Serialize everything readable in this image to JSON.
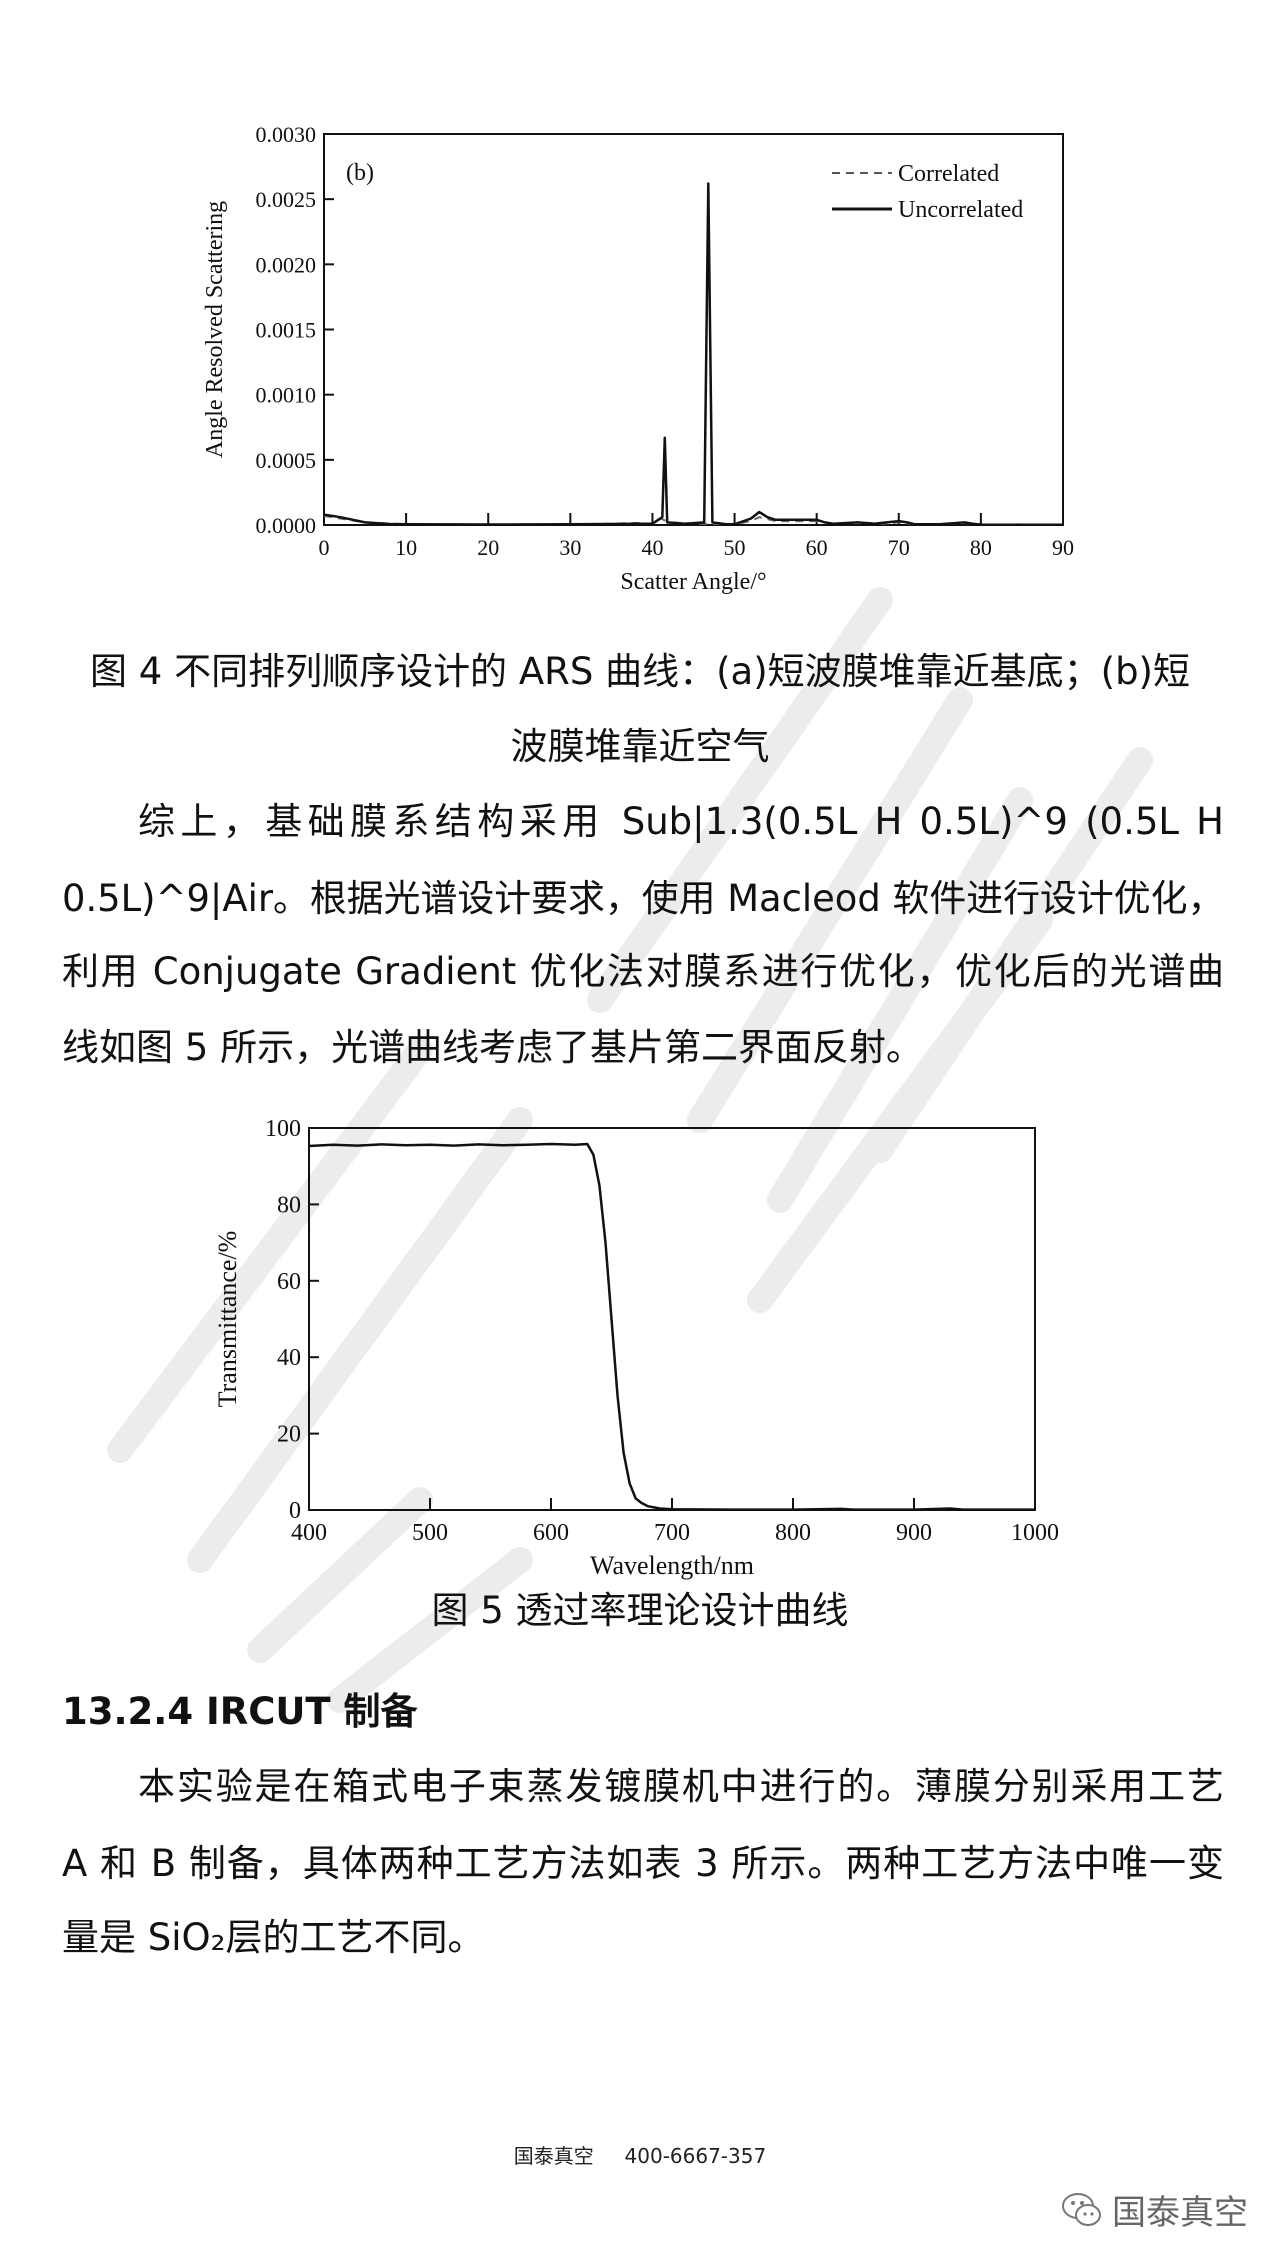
{
  "watermark": "国泰真空",
  "figure4": {
    "caption_line1": "图 4 不同排列顺序设计的 ARS 曲线：(a)短波膜堆靠近基底；(b)短",
    "caption_line2": "波膜堆靠近空气"
  },
  "paragraph1": {
    "lines": [
      "综上，基础膜系结构采用 Sub|1.3(0.5L  H  0.5L)^9  (0.5L  H",
      "0.5L)^9|Air。根据光谱设计要求，使用 Macleod 软件进行设计优化，",
      "利用 Conjugate  Gradient 优化法对膜系进行优化，优化后的光谱曲",
      "线如图 5 所示，光谱曲线考虑了基片第二界面反射。"
    ]
  },
  "figure5": {
    "caption": "图 5  透过率理论设计曲线"
  },
  "section": {
    "heading": "13.2.4 IRCUT 制备",
    "lines": [
      "本实验是在箱式电子束蒸发镀膜机中进行的。薄膜分别采用工艺",
      "A 和 B 制备，具体两种工艺方法如表 3 所示。两种工艺方法中唯一变",
      "量是 SiO₂层的工艺不同。"
    ]
  },
  "footer": {
    "company": "国泰真空",
    "phone": "400-6667-357",
    "wechat_label": "国泰真空",
    "wechat_icon": "wechat-icon"
  },
  "chart_data": [
    {
      "type": "line",
      "panel_label": "(b)",
      "xlabel": "Scatter Angle/°",
      "ylabel": "Angle Resolved Scattering",
      "xlim": [
        0,
        90
      ],
      "ylim": [
        0,
        0.003
      ],
      "xticks": [
        "0",
        "10",
        "20",
        "30",
        "40",
        "50",
        "60",
        "70",
        "80",
        "90"
      ],
      "yticks": [
        "0.0000",
        "0.0005",
        "0.0010",
        "0.0015",
        "0.0020",
        "0.0025",
        "0.0030"
      ],
      "grid": false,
      "legend": "top-right",
      "series": [
        {
          "name": "Correlated",
          "style": "dashed",
          "x": [
            0,
            2,
            5,
            10,
            20,
            30,
            35,
            38,
            40,
            41,
            42,
            45,
            50,
            52,
            53,
            55,
            60,
            62,
            65,
            68,
            70,
            72,
            75,
            78,
            80,
            85,
            90
          ],
          "y": [
            7e-05,
            5e-05,
            2e-05,
            5e-06,
            4e-06,
            5e-06,
            1e-05,
            1.5e-05,
            1e-05,
            5e-05,
            2e-05,
            1e-05,
            5e-06,
            3e-05,
            6e-05,
            3e-05,
            3e-05,
            1e-05,
            2e-05,
            1e-05,
            2e-05,
            5e-06,
            5e-06,
            1.5e-05,
            3e-06,
            2e-06,
            2e-06
          ]
        },
        {
          "name": "Uncorrelated",
          "style": "solid",
          "x": [
            0,
            2,
            5,
            8,
            10,
            20,
            30,
            35,
            38,
            40,
            41.2,
            41.5,
            41.8,
            44,
            46.3,
            46.8,
            47.3,
            49,
            50,
            52,
            53,
            54,
            55,
            58,
            60,
            61,
            62,
            65,
            67,
            70,
            71,
            72,
            75,
            78,
            79,
            80,
            85,
            90
          ],
          "y": [
            8e-05,
            6e-05,
            2e-05,
            8e-06,
            5e-06,
            4e-06,
            5e-06,
            8e-06,
            1e-05,
            1e-05,
            6e-05,
            0.00067,
            2e-05,
            1e-05,
            2e-05,
            0.00262,
            2e-05,
            5e-06,
            5e-06,
            5e-05,
            0.0001,
            6e-05,
            4e-05,
            4e-05,
            4e-05,
            2e-05,
            1e-05,
            2e-05,
            1e-05,
            3e-05,
            2e-05,
            5e-06,
            5e-06,
            2e-05,
            1e-05,
            3e-06,
            2e-06,
            2e-06
          ]
        }
      ]
    },
    {
      "type": "line",
      "xlabel": "Wavelength/nm",
      "ylabel": "Transmittance/%",
      "xlim": [
        400,
        1000
      ],
      "ylim": [
        0,
        100
      ],
      "xticks": [
        "400",
        "500",
        "600",
        "700",
        "800",
        "900",
        "1000"
      ],
      "yticks": [
        "0",
        "20",
        "40",
        "60",
        "80",
        "100"
      ],
      "grid": false,
      "series": [
        {
          "x": [
            400,
            420,
            440,
            460,
            480,
            500,
            520,
            540,
            560,
            580,
            600,
            620,
            630,
            635,
            640,
            645,
            650,
            655,
            660,
            665,
            670,
            675,
            680,
            690,
            700,
            750,
            800,
            840,
            850,
            900,
            930,
            940,
            1000
          ],
          "y": [
            95.3,
            95.6,
            95.4,
            95.7,
            95.5,
            95.6,
            95.4,
            95.7,
            95.5,
            95.6,
            95.8,
            95.6,
            95.8,
            93,
            85,
            70,
            50,
            30,
            15,
            7,
            3,
            1.8,
            1,
            0.4,
            0.2,
            0.1,
            0.1,
            0.3,
            0.1,
            0.1,
            0.4,
            0.1,
            0.1
          ]
        }
      ]
    }
  ]
}
